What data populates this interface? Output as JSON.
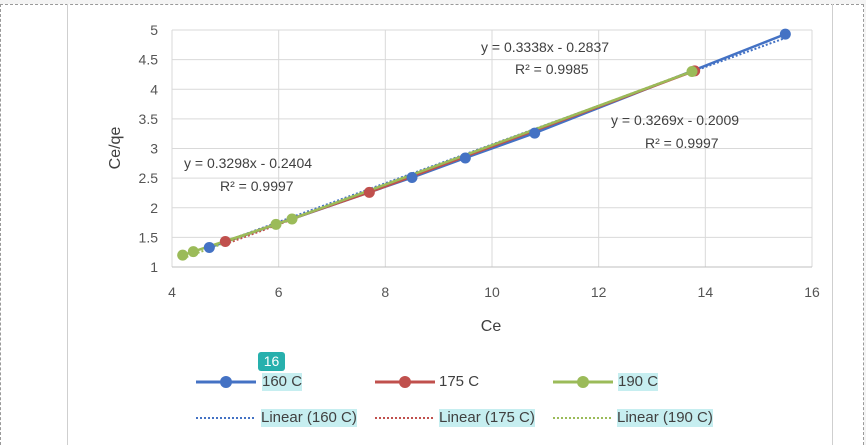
{
  "badge": "16",
  "chart_data": {
    "type": "scatter",
    "xlabel": "Ce",
    "ylabel": "Ce/qe",
    "xlim": [
      4,
      16
    ],
    "ylim": [
      1,
      5
    ],
    "xticks": [
      4,
      6,
      8,
      10,
      12,
      14,
      16
    ],
    "yticks": [
      1,
      1.5,
      2,
      2.5,
      3,
      3.5,
      4,
      4.5,
      5
    ],
    "xtick_labels": [
      "4",
      "6",
      "8",
      "10",
      "12",
      "14",
      "16"
    ],
    "ytick_labels": [
      "1",
      "1.5",
      "2",
      "2.5",
      "3",
      "3.5",
      "4",
      "4.5",
      "5"
    ],
    "grid": true,
    "legend_position": "bottom",
    "series": [
      {
        "name": "160 C",
        "color": "#4472c4",
        "x": [
          4.7,
          8.5,
          9.5,
          10.8,
          15.5
        ],
        "y": [
          1.33,
          2.51,
          2.84,
          3.26,
          4.93
        ]
      },
      {
        "name": "175 C",
        "color": "#c0504d",
        "x": [
          5.0,
          7.7,
          13.8
        ],
        "y": [
          1.43,
          2.26,
          4.31
        ]
      },
      {
        "name": "190 C",
        "color": "#9bbb59",
        "x": [
          4.2,
          4.4,
          5.95,
          6.25,
          13.75
        ],
        "y": [
          1.2,
          1.26,
          1.72,
          1.81,
          4.3
        ]
      }
    ],
    "trendlines": [
      {
        "name": "Linear (160 C)",
        "color": "#4472c4",
        "slope": 0.3269,
        "intercept": -0.2009,
        "equation": "y = 0.3269x - 0.2009",
        "r2": "R² = 0.9997"
      },
      {
        "name": "Linear (175 C)",
        "color": "#c0504d",
        "slope": 0.3338,
        "intercept": -0.2837,
        "equation": "y = 0.3338x - 0.2837",
        "r2": "R² = 0.9985"
      },
      {
        "name": "Linear (190 C)",
        "color": "#9bbb59",
        "slope": 0.3298,
        "intercept": -0.2404,
        "equation": "y = 0.3298x - 0.2404",
        "r2": "R² = 0.9997"
      }
    ]
  }
}
